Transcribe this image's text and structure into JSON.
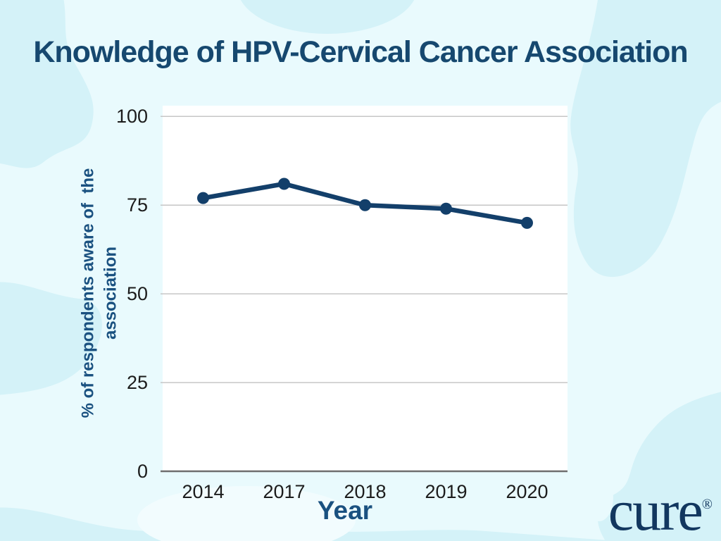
{
  "page": {
    "background_color": "#e9fafd",
    "blob_color": "#d4f2f8",
    "accent_light_color": "#f2fcfe"
  },
  "title": {
    "text": "Knowledge of HPV-Cervical Cancer Association",
    "color": "#16486f"
  },
  "logo": {
    "text": "cure",
    "registered_mark": "®",
    "color": "#12375f"
  },
  "chart_data": {
    "type": "line",
    "title": "Knowledge of HPV-Cervical Cancer Association",
    "categories": [
      "2014",
      "2017",
      "2018",
      "2019",
      "2020"
    ],
    "values": [
      77,
      81,
      75,
      74,
      70
    ],
    "series_name": "% of respondents aware of the association",
    "xlabel": "Year",
    "ylabel": "% of respondents aware of  the\nassociation",
    "yticks": [
      0,
      25,
      50,
      75,
      100
    ],
    "ylim": [
      0,
      100
    ],
    "grid": true,
    "legend_position": "none",
    "plot_background": "#ffffff",
    "line_color": "#133f6a",
    "marker": "circle",
    "gridline_color": "#c6c6c6",
    "axis_line_color": "#6e6e6e",
    "tick_label_color": "#1c1c1c",
    "axis_title_color": "#1a5180"
  }
}
